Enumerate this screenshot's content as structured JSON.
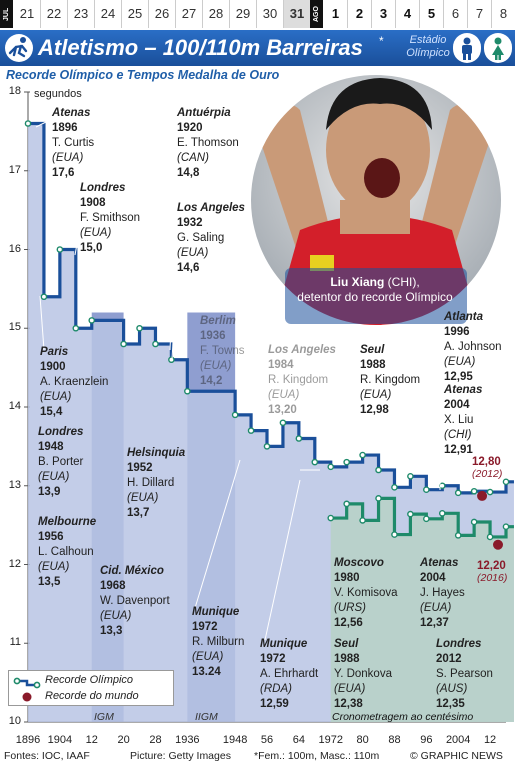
{
  "date_strip": {
    "month_left": "JUL",
    "month_right": "AGO",
    "days_july": [
      "21",
      "22",
      "23",
      "24",
      "25",
      "26",
      "27",
      "28",
      "29",
      "30",
      "31"
    ],
    "days_august": [
      "1",
      "2",
      "3",
      "4",
      "5",
      "6",
      "7",
      "8"
    ]
  },
  "header": {
    "title": "Atletismo – 100/110m Barreiras",
    "title_mark": "*",
    "venue": "Estádio Olímpico",
    "subtitle": "Recorde Olímpico e Tempos Medalha de Ouro"
  },
  "photo": {
    "caption_name": "Liu Xiang",
    "caption_country": " (CHI),",
    "caption_desc": "detentor do recorde Olímpico"
  },
  "chart_data": {
    "type": "line",
    "ylabel": "segundos",
    "ylim": [
      10,
      18
    ],
    "yticks": [
      "18",
      "17",
      "16",
      "15",
      "14",
      "13",
      "12",
      "11",
      "10"
    ],
    "xlim": [
      1896,
      2016
    ],
    "xticks": [
      "1896",
      "1904",
      "12",
      "20",
      "28",
      "1936",
      "1948",
      "56",
      "64",
      "1972",
      "80",
      "88",
      "96",
      "2004",
      "12"
    ],
    "series": [
      {
        "name": "Recorde Olímpico",
        "points": [
          [
            1896,
            17.6
          ],
          [
            1900,
            15.4
          ],
          [
            1904,
            16.0
          ],
          [
            1908,
            15.0
          ],
          [
            1912,
            15.1
          ],
          [
            1920,
            14.8
          ],
          [
            1924,
            15.0
          ],
          [
            1928,
            14.8
          ],
          [
            1932,
            14.6
          ],
          [
            1936,
            14.2
          ],
          [
            1948,
            13.9
          ],
          [
            1952,
            13.7
          ],
          [
            1956,
            13.5
          ],
          [
            1960,
            13.8
          ],
          [
            1964,
            13.6
          ],
          [
            1968,
            13.3
          ],
          [
            1972,
            13.24
          ],
          [
            1976,
            13.3
          ],
          [
            1980,
            13.39
          ],
          [
            1984,
            13.2
          ],
          [
            1988,
            12.98
          ],
          [
            1992,
            13.12
          ],
          [
            1996,
            12.95
          ],
          [
            2000,
            13.0
          ],
          [
            2004,
            12.91
          ],
          [
            2008,
            12.93
          ],
          [
            2012,
            12.92
          ],
          [
            2016,
            13.05
          ]
        ]
      },
      {
        "name": "Recorde Olímpico (Fem.)",
        "points": [
          [
            1972,
            12.59
          ],
          [
            1976,
            12.77
          ],
          [
            1980,
            12.56
          ],
          [
            1984,
            12.84
          ],
          [
            1988,
            12.38
          ],
          [
            1992,
            12.64
          ],
          [
            1996,
            12.58
          ],
          [
            2000,
            12.65
          ],
          [
            2004,
            12.37
          ],
          [
            2008,
            12.54
          ],
          [
            2012,
            12.35
          ],
          [
            2016,
            12.48
          ]
        ]
      }
    ],
    "world_records": [
      {
        "name": "Recorde do mundo",
        "value": "12,80",
        "year": "(2012)"
      },
      {
        "name": "Recorde do mundo",
        "value": "12,20",
        "year": "(2016)"
      }
    ],
    "shaded_bands": [
      {
        "label": "IGM",
        "from": 1912,
        "to": 1920
      },
      {
        "label": "IIGM",
        "from": 1936,
        "to": 1948
      }
    ],
    "band_note": "Cronometragem ao centésimo",
    "legend": {
      "olympic": "Recorde Olímpico",
      "world": "Recorde do mundo"
    },
    "annotations": [
      {
        "city": "Atenas",
        "year": "1896",
        "name": "T. Curtis",
        "country": "(EUA)",
        "time": "17,6"
      },
      {
        "city": "Paris",
        "year": "1900",
        "name": "A. Kraenzlein",
        "country": "(EUA)",
        "time": "15,4"
      },
      {
        "city": "Londres",
        "year": "1908",
        "name": "F. Smithson",
        "country": "(EUA)",
        "time": "15,0"
      },
      {
        "city": "Antuérpia",
        "year": "1920",
        "name": "E. Thomson",
        "country": "(CAN)",
        "time": "14,8"
      },
      {
        "city": "Los Angeles",
        "year": "1932",
        "name": "G. Saling",
        "country": "(EUA)",
        "time": "14,6"
      },
      {
        "city": "Berlim",
        "year": "1936",
        "name": "F. Towns",
        "country": "(EUA)",
        "time": "14,2"
      },
      {
        "city": "Londres",
        "year": "1948",
        "name": "B. Porter",
        "country": "(EUA)",
        "time": "13,9"
      },
      {
        "city": "Helsinquia",
        "year": "1952",
        "name": "H. Dillard",
        "country": "(EUA)",
        "time": "13,7"
      },
      {
        "city": "Melbourne",
        "year": "1956",
        "name": "L. Calhoun",
        "country": "(EUA)",
        "time": "13,5"
      },
      {
        "city": "Cid. México",
        "year": "1968",
        "name": "W. Davenport",
        "country": "(EUA)",
        "time": "13,3"
      },
      {
        "city": "Munique",
        "year": "1972",
        "name": "R. Milburn",
        "country": "(EUA)",
        "time": "13.24"
      },
      {
        "city": "Los Angeles",
        "year": "1984",
        "name": "R. Kingdom",
        "country": "(EUA)",
        "time": "13,20"
      },
      {
        "city": "Seul",
        "year": "1988",
        "name": "R. Kingdom",
        "country": "(EUA)",
        "time": "12,98"
      },
      {
        "city": "Atlanta",
        "year": "1996",
        "name": "A. Johnson",
        "country": "(EUA)",
        "time": "12,95"
      },
      {
        "city": "Atenas",
        "year": "2004",
        "name": "X. Liu",
        "country": "(CHI)",
        "time": "12,91"
      },
      {
        "city": "Munique",
        "year": "1972",
        "name": "A. Ehrhardt",
        "country": "(RDA)",
        "time": "12,59"
      },
      {
        "city": "Moscovo",
        "year": "1980",
        "name": "V. Komisova",
        "country": "(URS)",
        "time": "12,56"
      },
      {
        "city": "Seul",
        "year": "1988",
        "name": "Y. Donkova",
        "country": "(EUA)",
        "time": "12,38"
      },
      {
        "city": "Atenas",
        "year": "2004",
        "name": "J. Hayes",
        "country": "(EUA)",
        "time": "12,37"
      },
      {
        "city": "Londres",
        "year": "2012",
        "name": "S. Pearson",
        "country": "(AUS)",
        "time": "12,35"
      }
    ]
  },
  "footer": {
    "sources": "Fontes: IOC, IAAF",
    "picture": "Picture: Getty Images",
    "note": "*Fem.: 100m, Masc.: 110m",
    "copyright": "© GRAPHIC NEWS"
  },
  "colors": {
    "men": "#1a4f9a",
    "men_fill": "#b8c4e4",
    "women": "#1e8a6a",
    "women_fill": "#b7d1c6",
    "band": "#8f9ed0",
    "wr": "#8a1a2a"
  }
}
